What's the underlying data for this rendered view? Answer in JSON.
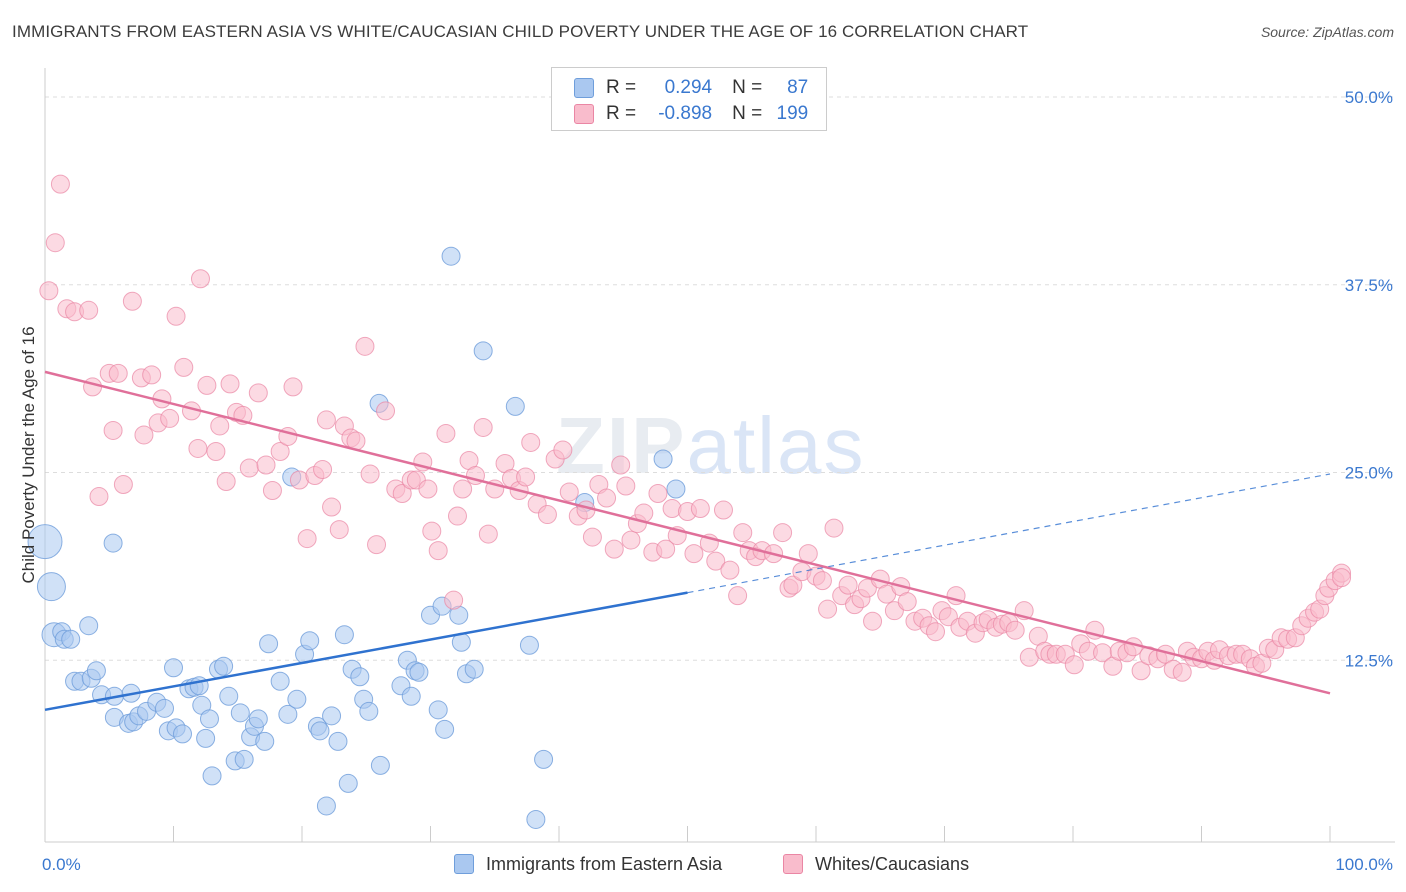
{
  "title": "IMMIGRANTS FROM EASTERN ASIA VS WHITE/CAUCASIAN CHILD POVERTY UNDER THE AGE OF 16 CORRELATION CHART",
  "source": "Source: ZipAtlas.com",
  "watermark": {
    "zip": "ZIP",
    "atlas": "atlas"
  },
  "legend": {
    "rows": [
      {
        "r_label": "R =",
        "r_value": "0.294",
        "n_label": "N =",
        "n_value": "87"
      },
      {
        "r_label": "R =",
        "r_value": "-0.898",
        "n_label": "N =",
        "n_value": "199"
      }
    ]
  },
  "colors": {
    "blue": "#6f9edb",
    "blue_fill": "#aac8f0",
    "blue_line": "#2f72cf",
    "pink": "#ea86a4",
    "pink_fill": "#f9bccc",
    "pink_line": "#e0709a",
    "tick_label": "#3a78cf",
    "grid": "#dddddd"
  },
  "chart_data": {
    "type": "scatter",
    "title": "IMMIGRANTS FROM EASTERN ASIA VS WHITE/CAUCASIAN CHILD POVERTY UNDER THE AGE OF 16 CORRELATION CHART",
    "xlabel": "",
    "ylabel": "Child Poverty Under the Age of 16",
    "xlim": [
      0,
      100
    ],
    "ylim": [
      0,
      50
    ],
    "x_tick_labels": [
      "0.0%",
      "100.0%"
    ],
    "y_ticks": [
      12.5,
      25.0,
      37.5,
      50.0
    ],
    "y_tick_labels": [
      "12.5%",
      "25.0%",
      "37.5%",
      "50.0%"
    ],
    "grid": true,
    "legend_position": "bottom",
    "series": [
      {
        "name": "Immigrants from Eastern Asia",
        "R": 0.294,
        "N": 87,
        "trend": {
          "x0": 0,
          "y0": 9.2,
          "x1": 50,
          "y1": 17.0,
          "dashed_to_x": 100,
          "dashed_to_y": 24.9
        },
        "points": [
          [
            0,
            20.4
          ],
          [
            0.5,
            17.4
          ],
          [
            0.7,
            14.2
          ],
          [
            1.3,
            14.4
          ],
          [
            1.5,
            13.9
          ],
          [
            2,
            13.9
          ],
          [
            2.3,
            11.1
          ],
          [
            2.8,
            11.1
          ],
          [
            3.4,
            14.8
          ],
          [
            3.6,
            11.3
          ],
          [
            4.0,
            11.8
          ],
          [
            4.4,
            10.2
          ],
          [
            5.4,
            10.1
          ],
          [
            5.3,
            20.3
          ],
          [
            5.4,
            8.7
          ],
          [
            6.5,
            8.3
          ],
          [
            6.7,
            10.3
          ],
          [
            6.9,
            8.4
          ],
          [
            7.3,
            8.8
          ],
          [
            7.9,
            9.1
          ],
          [
            8.7,
            9.7
          ],
          [
            9.3,
            9.3
          ],
          [
            9.6,
            7.8
          ],
          [
            10.0,
            12.0
          ],
          [
            10.2,
            8.0
          ],
          [
            10.7,
            7.6
          ],
          [
            11.2,
            10.6
          ],
          [
            11.6,
            10.7
          ],
          [
            12.0,
            10.8
          ],
          [
            12.2,
            9.5
          ],
          [
            12.5,
            7.3
          ],
          [
            12.8,
            8.6
          ],
          [
            13.0,
            4.8
          ],
          [
            13.5,
            11.9
          ],
          [
            13.9,
            12.1
          ],
          [
            14.3,
            10.1
          ],
          [
            14.8,
            5.8
          ],
          [
            15.2,
            9.0
          ],
          [
            15.5,
            5.9
          ],
          [
            16.0,
            7.4
          ],
          [
            16.3,
            8.1
          ],
          [
            16.6,
            8.6
          ],
          [
            17.1,
            7.1
          ],
          [
            17.4,
            13.6
          ],
          [
            18.3,
            11.1
          ],
          [
            18.9,
            8.9
          ],
          [
            19.2,
            24.7
          ],
          [
            19.6,
            9.9
          ],
          [
            20.2,
            12.9
          ],
          [
            20.6,
            13.8
          ],
          [
            21.2,
            8.1
          ],
          [
            21.4,
            7.8
          ],
          [
            21.9,
            2.8
          ],
          [
            22.3,
            8.8
          ],
          [
            22.8,
            7.1
          ],
          [
            23.3,
            14.2
          ],
          [
            23.6,
            4.3
          ],
          [
            23.9,
            11.9
          ],
          [
            24.5,
            11.4
          ],
          [
            24.8,
            9.9
          ],
          [
            25.2,
            9.1
          ],
          [
            26.0,
            29.6
          ],
          [
            26.1,
            5.5
          ],
          [
            27.7,
            10.8
          ],
          [
            28.2,
            12.5
          ],
          [
            28.5,
            10.1
          ],
          [
            28.8,
            11.8
          ],
          [
            29.1,
            11.7
          ],
          [
            30.0,
            15.5
          ],
          [
            30.6,
            9.2
          ],
          [
            30.9,
            16.1
          ],
          [
            31.1,
            7.9
          ],
          [
            31.6,
            39.4
          ],
          [
            32.2,
            15.5
          ],
          [
            32.4,
            13.7
          ],
          [
            32.8,
            11.6
          ],
          [
            33.4,
            11.9
          ],
          [
            34.1,
            33.1
          ],
          [
            36.6,
            29.4
          ],
          [
            37.7,
            13.5
          ],
          [
            38.2,
            1.9
          ],
          [
            38.8,
            5.9
          ],
          [
            42.0,
            23.0
          ],
          [
            48.1,
            25.9
          ],
          [
            49.1,
            23.9
          ]
        ],
        "large_points": [
          [
            0,
            20.4
          ],
          [
            0.5,
            17.4
          ],
          [
            0.7,
            14.2
          ]
        ]
      },
      {
        "name": "Whites/Caucasians",
        "R": -0.898,
        "N": 199,
        "trend": {
          "x0": 0,
          "y0": 31.7,
          "x1": 100,
          "y1": 10.3
        },
        "points": [
          [
            0.3,
            37.1
          ],
          [
            0.8,
            40.3
          ],
          [
            1.2,
            44.2
          ],
          [
            1.7,
            35.9
          ],
          [
            2.3,
            35.7
          ],
          [
            3.4,
            35.8
          ],
          [
            3.7,
            30.7
          ],
          [
            4.2,
            23.4
          ],
          [
            5.0,
            31.6
          ],
          [
            5.3,
            27.8
          ],
          [
            5.7,
            31.6
          ],
          [
            6.1,
            24.2
          ],
          [
            6.8,
            36.4
          ],
          [
            7.5,
            31.3
          ],
          [
            7.7,
            27.5
          ],
          [
            8.3,
            31.5
          ],
          [
            8.8,
            28.3
          ],
          [
            9.1,
            29.9
          ],
          [
            9.7,
            28.6
          ],
          [
            10.2,
            35.4
          ],
          [
            10.8,
            32.0
          ],
          [
            11.4,
            29.1
          ],
          [
            11.9,
            26.6
          ],
          [
            12.1,
            37.9
          ],
          [
            12.6,
            30.8
          ],
          [
            13.3,
            26.4
          ],
          [
            13.6,
            28.1
          ],
          [
            14.1,
            24.4
          ],
          [
            14.4,
            30.9
          ],
          [
            14.9,
            29.0
          ],
          [
            15.4,
            28.8
          ],
          [
            15.9,
            25.3
          ],
          [
            16.6,
            30.3
          ],
          [
            17.2,
            25.5
          ],
          [
            17.7,
            23.8
          ],
          [
            18.3,
            26.4
          ],
          [
            18.9,
            27.4
          ],
          [
            19.3,
            30.7
          ],
          [
            19.8,
            24.5
          ],
          [
            20.4,
            20.6
          ],
          [
            21.0,
            24.8
          ],
          [
            21.6,
            25.2
          ],
          [
            21.9,
            28.5
          ],
          [
            22.3,
            22.7
          ],
          [
            22.9,
            21.2
          ],
          [
            23.3,
            28.1
          ],
          [
            23.8,
            27.3
          ],
          [
            24.2,
            27.1
          ],
          [
            24.9,
            33.4
          ],
          [
            25.3,
            24.9
          ],
          [
            25.8,
            20.2
          ],
          [
            26.5,
            29.1
          ],
          [
            27.3,
            23.9
          ],
          [
            27.8,
            23.6
          ],
          [
            28.5,
            24.5
          ],
          [
            28.9,
            24.5
          ],
          [
            29.4,
            25.7
          ],
          [
            29.8,
            23.9
          ],
          [
            30.1,
            21.1
          ],
          [
            30.6,
            19.8
          ],
          [
            31.2,
            27.6
          ],
          [
            31.8,
            16.5
          ],
          [
            32.1,
            22.1
          ],
          [
            32.5,
            23.9
          ],
          [
            33.0,
            25.8
          ],
          [
            33.5,
            24.8
          ],
          [
            34.1,
            28.0
          ],
          [
            34.5,
            20.9
          ],
          [
            35.0,
            23.9
          ],
          [
            35.8,
            25.6
          ],
          [
            36.3,
            24.6
          ],
          [
            36.9,
            23.8
          ],
          [
            37.4,
            24.7
          ],
          [
            37.8,
            27.0
          ],
          [
            38.3,
            22.9
          ],
          [
            39.1,
            22.2
          ],
          [
            39.7,
            25.9
          ],
          [
            40.3,
            26.5
          ],
          [
            40.8,
            23.7
          ],
          [
            41.5,
            22.1
          ],
          [
            42.1,
            22.5
          ],
          [
            42.6,
            20.7
          ],
          [
            43.1,
            24.2
          ],
          [
            43.7,
            23.3
          ],
          [
            44.3,
            19.9
          ],
          [
            44.8,
            25.5
          ],
          [
            45.2,
            24.1
          ],
          [
            45.6,
            20.5
          ],
          [
            46.1,
            21.6
          ],
          [
            46.6,
            22.3
          ],
          [
            47.3,
            19.7
          ],
          [
            47.7,
            23.6
          ],
          [
            48.3,
            19.9
          ],
          [
            48.8,
            22.6
          ],
          [
            49.2,
            20.8
          ],
          [
            50.0,
            22.4
          ],
          [
            50.5,
            19.6
          ],
          [
            51.0,
            22.6
          ],
          [
            51.7,
            20.3
          ],
          [
            52.2,
            19.1
          ],
          [
            52.8,
            22.5
          ],
          [
            53.3,
            18.5
          ],
          [
            53.9,
            16.8
          ],
          [
            54.3,
            21.0
          ],
          [
            54.8,
            19.8
          ],
          [
            55.3,
            19.4
          ],
          [
            55.8,
            19.8
          ],
          [
            56.7,
            19.6
          ],
          [
            57.4,
            21.0
          ],
          [
            57.9,
            17.3
          ],
          [
            58.2,
            17.5
          ],
          [
            58.9,
            18.4
          ],
          [
            59.4,
            19.6
          ],
          [
            60.0,
            18.1
          ],
          [
            60.5,
            17.8
          ],
          [
            60.9,
            15.9
          ],
          [
            61.4,
            21.3
          ],
          [
            62.0,
            16.8
          ],
          [
            62.5,
            17.5
          ],
          [
            63.0,
            16.2
          ],
          [
            63.5,
            16.6
          ],
          [
            64.0,
            17.3
          ],
          [
            64.4,
            15.1
          ],
          [
            65.0,
            17.9
          ],
          [
            65.5,
            16.9
          ],
          [
            66.1,
            15.8
          ],
          [
            66.6,
            17.4
          ],
          [
            67.1,
            16.4
          ],
          [
            67.7,
            15.1
          ],
          [
            68.3,
            15.3
          ],
          [
            68.8,
            14.8
          ],
          [
            69.3,
            14.4
          ],
          [
            69.8,
            15.8
          ],
          [
            70.3,
            15.4
          ],
          [
            70.9,
            16.8
          ],
          [
            71.2,
            14.7
          ],
          [
            71.8,
            15.1
          ],
          [
            72.4,
            14.3
          ],
          [
            73.0,
            15.0
          ],
          [
            73.4,
            15.2
          ],
          [
            74.0,
            14.7
          ],
          [
            74.5,
            14.9
          ],
          [
            75.0,
            15.0
          ],
          [
            75.5,
            14.5
          ],
          [
            76.2,
            15.8
          ],
          [
            76.6,
            12.7
          ],
          [
            77.3,
            14.1
          ],
          [
            77.8,
            13.1
          ],
          [
            78.2,
            12.9
          ],
          [
            78.7,
            12.9
          ],
          [
            79.4,
            12.9
          ],
          [
            80.1,
            12.2
          ],
          [
            80.6,
            13.6
          ],
          [
            81.2,
            13.1
          ],
          [
            81.7,
            14.5
          ],
          [
            82.3,
            13.0
          ],
          [
            83.1,
            12.1
          ],
          [
            83.6,
            13.1
          ],
          [
            84.2,
            13.0
          ],
          [
            84.7,
            13.4
          ],
          [
            85.3,
            11.8
          ],
          [
            85.9,
            12.8
          ],
          [
            86.6,
            12.6
          ],
          [
            87.2,
            12.9
          ],
          [
            87.8,
            11.9
          ],
          [
            88.5,
            11.7
          ],
          [
            88.9,
            13.1
          ],
          [
            89.4,
            12.7
          ],
          [
            90.0,
            12.6
          ],
          [
            90.5,
            13.1
          ],
          [
            91.0,
            12.5
          ],
          [
            91.4,
            13.2
          ],
          [
            92.1,
            12.8
          ],
          [
            92.7,
            12.9
          ],
          [
            93.2,
            12.9
          ],
          [
            93.8,
            12.6
          ],
          [
            94.2,
            12.1
          ],
          [
            94.7,
            12.3
          ],
          [
            95.2,
            13.3
          ],
          [
            95.7,
            13.2
          ],
          [
            96.2,
            14.0
          ],
          [
            96.7,
            13.9
          ],
          [
            97.3,
            14.0
          ],
          [
            97.8,
            14.8
          ],
          [
            98.3,
            15.3
          ],
          [
            98.8,
            15.7
          ],
          [
            99.2,
            15.9
          ],
          [
            99.6,
            16.8
          ],
          [
            99.9,
            17.3
          ],
          [
            100.4,
            17.8
          ],
          [
            101.0,
            18.3
          ],
          [
            101.3,
            18.0
          ]
        ]
      }
    ]
  },
  "bottom_legend": [
    {
      "label": "Immigrants from Eastern Asia"
    },
    {
      "label": "Whites/Caucasians"
    }
  ]
}
